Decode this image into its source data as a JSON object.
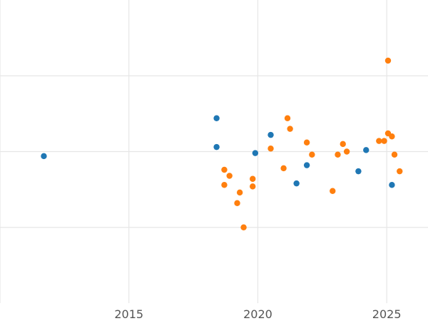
{
  "chart_data": {
    "type": "scatter",
    "title": "",
    "xlabel": "",
    "ylabel": "",
    "xlim": [
      2010.0,
      2026.6
    ],
    "ylim": [
      0.5,
      2.5
    ],
    "x_ticks": [
      2015,
      2020,
      2025
    ],
    "y_grid": [
      1.0,
      1.5,
      2.0
    ],
    "grid": true,
    "legend": "none",
    "series": [
      {
        "color": "#1f77b4",
        "points": [
          [
            2011.7,
            1.47
          ],
          [
            2018.4,
            1.72
          ],
          [
            2018.4,
            1.53
          ],
          [
            2019.9,
            1.49
          ],
          [
            2020.5,
            1.61
          ],
          [
            2021.5,
            1.29
          ],
          [
            2021.9,
            1.41
          ],
          [
            2023.9,
            1.37
          ],
          [
            2024.2,
            1.51
          ],
          [
            2025.2,
            1.28
          ]
        ]
      },
      {
        "color": "#ff7f0e",
        "points": [
          [
            2018.7,
            1.38
          ],
          [
            2018.7,
            1.28
          ],
          [
            2018.9,
            1.34
          ],
          [
            2019.2,
            1.16
          ],
          [
            2019.3,
            1.23
          ],
          [
            2019.45,
            1.0
          ],
          [
            2019.8,
            1.32
          ],
          [
            2019.8,
            1.27
          ],
          [
            2020.5,
            1.52
          ],
          [
            2021.0,
            1.39
          ],
          [
            2021.15,
            1.72
          ],
          [
            2021.25,
            1.65
          ],
          [
            2021.9,
            1.56
          ],
          [
            2022.1,
            1.48
          ],
          [
            2022.9,
            1.24
          ],
          [
            2023.1,
            1.48
          ],
          [
            2023.3,
            1.55
          ],
          [
            2023.45,
            1.5
          ],
          [
            2024.7,
            1.57
          ],
          [
            2024.9,
            1.57
          ],
          [
            2025.05,
            1.62
          ],
          [
            2025.05,
            2.1
          ],
          [
            2025.2,
            1.6
          ],
          [
            2025.3,
            1.48
          ],
          [
            2025.5,
            1.37
          ]
        ]
      }
    ]
  }
}
